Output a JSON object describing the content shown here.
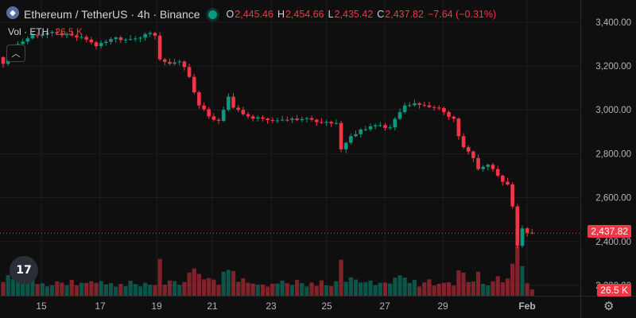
{
  "header": {
    "symbol": "Ethereum / TetherUS · 4h · Binance",
    "o_label": "O",
    "o_value": "2,445.46",
    "h_label": "H",
    "h_value": "2,454.66",
    "l_label": "L",
    "l_value": "2,435.42",
    "c_label": "C",
    "c_value": "2,437.82",
    "change": "−7.64 (−0.31%)"
  },
  "volume_legend": {
    "label": "Vol · ETH",
    "value": "26.5 K"
  },
  "price_tag": "2,437.82",
  "volume_tag": "26.5 K",
  "colors": {
    "up": "#089981",
    "down": "#f23645",
    "bg": "#0f0f0f",
    "grid": "#1e1e1e"
  },
  "chart_data": {
    "type": "candlestick",
    "x_tick_labels": [
      "15",
      "17",
      "19",
      "21",
      "23",
      "25",
      "27",
      "29",
      "Feb"
    ],
    "y_tick_labels": [
      "3,400.00",
      "3,200.00",
      "3,000.00",
      "2,800.00",
      "2,600.00",
      "2,400.00",
      "2,200.00"
    ],
    "y_ticks": [
      3400,
      3200,
      3000,
      2800,
      2600,
      2400,
      2200
    ],
    "ylim": [
      2160,
      3410
    ],
    "last_price": 2437.82,
    "close_path": [
      [
        0,
        3210
      ],
      [
        3,
        3300
      ],
      [
        6,
        3340
      ],
      [
        9,
        3350
      ],
      [
        12,
        3340
      ],
      [
        15,
        3330
      ],
      [
        17,
        3320
      ],
      [
        19,
        3290
      ],
      [
        21,
        3310
      ],
      [
        23,
        3330
      ],
      [
        25,
        3320
      ],
      [
        27,
        3325
      ],
      [
        29,
        3345
      ],
      [
        31,
        3338
      ],
      [
        32,
        3230
      ],
      [
        34,
        3210
      ],
      [
        36,
        3220
      ],
      [
        37,
        3195
      ],
      [
        38,
        3150
      ],
      [
        39,
        3080
      ],
      [
        40,
        3020
      ],
      [
        42,
        2970
      ],
      [
        44,
        2950
      ],
      [
        45,
        3000
      ],
      [
        46,
        3060
      ],
      [
        47,
        3010
      ],
      [
        48,
        3000
      ],
      [
        49,
        2980
      ],
      [
        50,
        2970
      ],
      [
        51,
        2960
      ],
      [
        53,
        2960
      ],
      [
        55,
        2950
      ],
      [
        57,
        2955
      ],
      [
        59,
        2960
      ],
      [
        61,
        2958
      ],
      [
        63,
        2955
      ],
      [
        66,
        2945
      ],
      [
        68,
        2940
      ],
      [
        69,
        2820
      ],
      [
        70,
        2850
      ],
      [
        71,
        2880
      ],
      [
        73,
        2910
      ],
      [
        76,
        2930
      ],
      [
        79,
        2920
      ],
      [
        81,
        2990
      ],
      [
        82,
        3020
      ],
      [
        84,
        3030
      ],
      [
        86,
        3020
      ],
      [
        88,
        3010
      ],
      [
        90,
        2990
      ],
      [
        92,
        2960
      ],
      [
        93,
        2880
      ],
      [
        94,
        2830
      ],
      [
        95,
        2810
      ],
      [
        96,
        2780
      ],
      [
        97,
        2730
      ],
      [
        98,
        2740
      ],
      [
        99,
        2750
      ],
      [
        100,
        2730
      ],
      [
        101,
        2700
      ],
      [
        103,
        2660
      ],
      [
        104,
        2560
      ],
      [
        105,
        2380
      ],
      [
        106,
        2460
      ],
      [
        107,
        2440
      ],
      [
        108,
        2438
      ]
    ],
    "volume_max": 60000,
    "volume_last": 26500
  }
}
